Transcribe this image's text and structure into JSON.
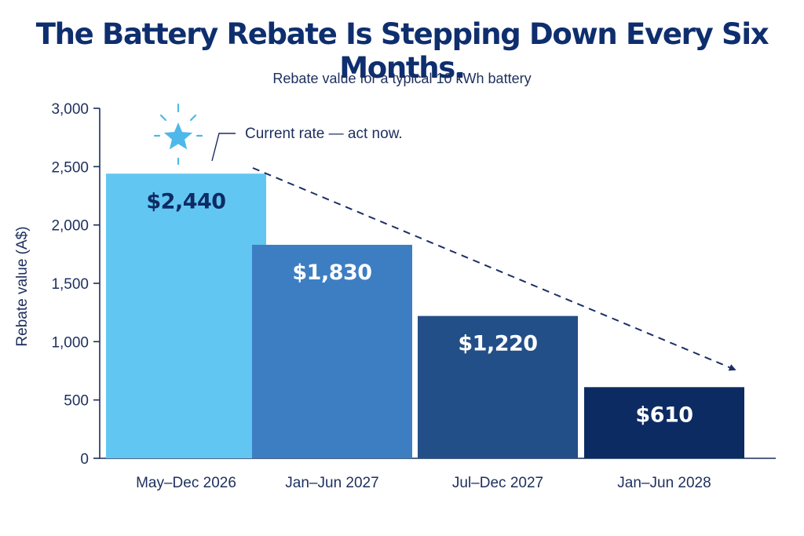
{
  "chart_data": {
    "type": "bar",
    "title": "The Battery Rebate Is Stepping Down Every Six Months.",
    "subtitle": "Rebate value for a typical 10 kWh battery",
    "ylabel": "Rebate value (A$)",
    "xlabel": "",
    "ylim": [
      0,
      3000
    ],
    "yticks": [
      0,
      500,
      1000,
      1500,
      2000,
      2500,
      3000
    ],
    "ytick_labels": [
      "0",
      "500",
      "1,000",
      "1,500",
      "2,000",
      "2,500",
      "3,000"
    ],
    "categories": [
      "May–Dec 2026",
      "Jan–Jun 2027",
      "Jul–Dec 2027",
      "Jan–Jun 2028"
    ],
    "values": [
      2440,
      1830,
      1220,
      610
    ],
    "data_labels": [
      "$2,440",
      "$1,830",
      "$1,220",
      "$610"
    ],
    "bar_colors": [
      "#62c6f2",
      "#3d7ec3",
      "#234f88",
      "#0d2b63"
    ],
    "label_colors": [
      "#0d2b63",
      "#ffffff",
      "#ffffff",
      "#ffffff"
    ],
    "annotation": "Current rate — act now.",
    "grid": false,
    "legend": "none",
    "colors": {
      "title": "#0e2e6e",
      "text": "#1d2f5e",
      "axis": "#1a2d5a",
      "trend_line": "#1c2f66",
      "star": "#4fb8ea"
    },
    "icons": {
      "highlight": "star-icon",
      "trend": "dashed-arrow"
    }
  }
}
